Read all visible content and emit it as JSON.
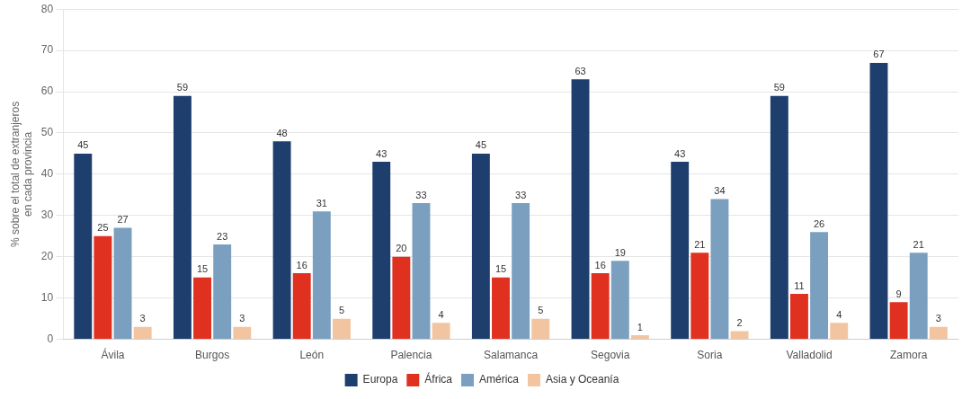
{
  "chart_data": {
    "type": "bar",
    "categories": [
      "Ávila",
      "Burgos",
      "León",
      "Palencia",
      "Salamanca",
      "Segovia",
      "Soria",
      "Valladolid",
      "Zamora"
    ],
    "series": [
      {
        "name": "Europa",
        "color": "#1e3f6e",
        "values": [
          45,
          59,
          48,
          43,
          45,
          63,
          43,
          59,
          67
        ]
      },
      {
        "name": "África",
        "color": "#e03020",
        "values": [
          25,
          15,
          16,
          20,
          15,
          16,
          21,
          11,
          9
        ]
      },
      {
        "name": "América",
        "color": "#7b9fbf",
        "values": [
          27,
          23,
          31,
          33,
          33,
          19,
          34,
          26,
          21
        ]
      },
      {
        "name": "Asia y Oceanía",
        "color": "#f2c4a0",
        "values": [
          3,
          3,
          5,
          4,
          5,
          1,
          2,
          4,
          3
        ]
      }
    ],
    "ylabel": "% sobre el total de extranjeros\nen cada provincia",
    "ylim": [
      0,
      80
    ],
    "yticks": [
      0,
      10,
      20,
      30,
      40,
      50,
      60,
      70,
      80
    ],
    "grid": true,
    "legend": "bottom",
    "data_labels": true
  }
}
